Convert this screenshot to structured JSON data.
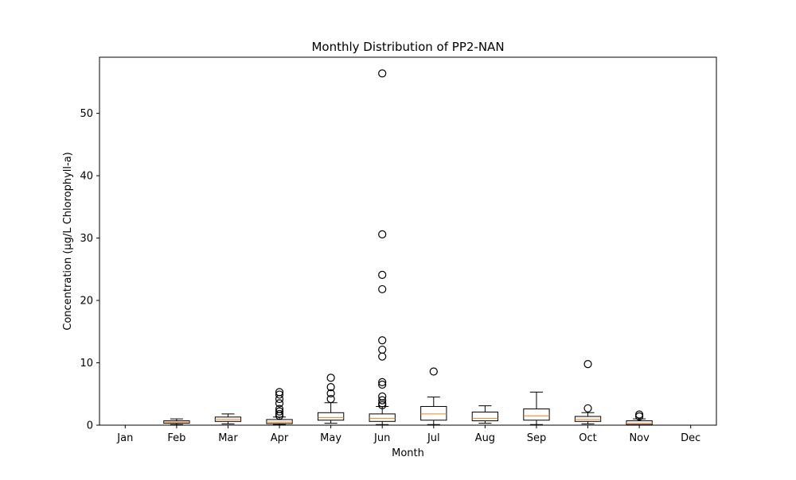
{
  "chart_data": {
    "type": "box",
    "title": "Monthly Distribution of PP2-NAN",
    "xlabel": "Month",
    "ylabel": "Concentration (µg/L Chlorophyll-a)",
    "categories": [
      "Jan",
      "Feb",
      "Mar",
      "Apr",
      "May",
      "Jun",
      "Jul",
      "Aug",
      "Sep",
      "Oct",
      "Nov",
      "Dec"
    ],
    "ylim": [
      0,
      59
    ],
    "yticks": [
      0,
      10,
      20,
      30,
      40,
      50
    ],
    "grid": false,
    "median_color": "#ff7f0e",
    "box_color": "#000000",
    "boxes": [
      null,
      {
        "min": 0.1,
        "q1": 0.3,
        "median": 0.5,
        "q3": 0.7,
        "max": 1.0,
        "outliers": []
      },
      {
        "min": 0.2,
        "q1": 0.6,
        "median": 0.9,
        "q3": 1.3,
        "max": 1.8,
        "outliers": []
      },
      {
        "min": 0.1,
        "q1": 0.25,
        "median": 0.5,
        "q3": 0.9,
        "max": 1.3,
        "outliers": [
          1.5,
          1.8,
          2.2,
          2.6,
          3.5,
          4.2,
          4.9,
          5.3
        ]
      },
      {
        "min": 0.3,
        "q1": 0.8,
        "median": 1.2,
        "q3": 2.0,
        "max": 3.6,
        "outliers": [
          4.2,
          5.1,
          6.1,
          7.6
        ]
      },
      {
        "min": 0.1,
        "q1": 0.6,
        "median": 1.1,
        "q3": 1.8,
        "max": 3.0,
        "outliers": [
          3.2,
          3.5,
          4.0,
          4.6,
          6.5,
          6.9,
          11.0,
          12.1,
          13.6,
          21.8,
          24.1,
          30.6,
          56.4
        ]
      },
      {
        "min": 0.1,
        "q1": 0.8,
        "median": 1.8,
        "q3": 3.0,
        "max": 4.5,
        "outliers": [
          8.6
        ]
      },
      {
        "min": 0.3,
        "q1": 0.7,
        "median": 1.1,
        "q3": 2.1,
        "max": 3.1,
        "outliers": []
      },
      {
        "min": 0.1,
        "q1": 0.8,
        "median": 1.5,
        "q3": 2.6,
        "max": 5.3,
        "outliers": []
      },
      {
        "min": 0.2,
        "q1": 0.6,
        "median": 0.9,
        "q3": 1.4,
        "max": 2.0,
        "outliers": [
          2.7,
          9.8
        ]
      },
      {
        "min": 0.0,
        "q1": 0.1,
        "median": 0.3,
        "q3": 0.7,
        "max": 1.0,
        "outliers": [
          1.4,
          1.7
        ]
      },
      null
    ]
  }
}
